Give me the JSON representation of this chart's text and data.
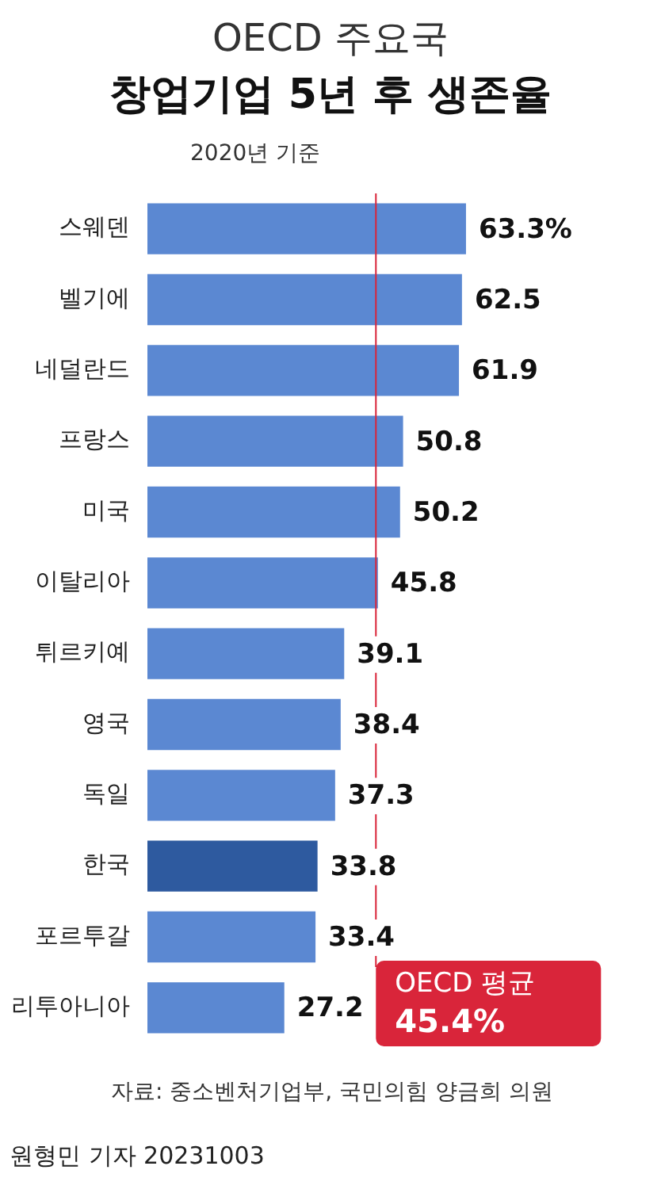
{
  "chart_data": {
    "type": "bar",
    "orientation": "horizontal",
    "title": "OECD 주요국",
    "subtitle": "창업기업 5년 후 생존율",
    "categories": [
      "스웨덴",
      "벨기에",
      "네덜란드",
      "프랑스",
      "미국",
      "이탈리아",
      "튀르키예",
      "영국",
      "독일",
      "한국",
      "포르투갈",
      "리투아니아"
    ],
    "values": [
      63.3,
      62.5,
      61.9,
      50.8,
      50.2,
      45.8,
      39.1,
      38.4,
      37.3,
      33.8,
      33.4,
      27.2
    ],
    "value_labels": [
      "63.3%",
      "62.5",
      "61.9",
      "50.8",
      "50.2",
      "45.8",
      "39.1",
      "38.4",
      "37.3",
      "33.8",
      "33.4",
      "27.2"
    ],
    "colors": [
      "#5b88d2",
      "#5b88d2",
      "#5b88d2",
      "#5b88d2",
      "#5b88d2",
      "#5b88d2",
      "#5b88d2",
      "#5b88d2",
      "#5b88d2",
      "#2e5a9f",
      "#5b88d2",
      "#5b88d2"
    ],
    "ref_lines": [
      {
        "axis": "x",
        "value": 45.4,
        "label": "OECD 평균\n45.4%",
        "color": "#d9253a"
      }
    ],
    "annotations": [
      "2020년 기준",
      "자료: 중소벤처기업부, 국민의힘 양금희 의원",
      "원형민 기자 20231003"
    ],
    "legend": false,
    "tick_labels": "y"
  }
}
